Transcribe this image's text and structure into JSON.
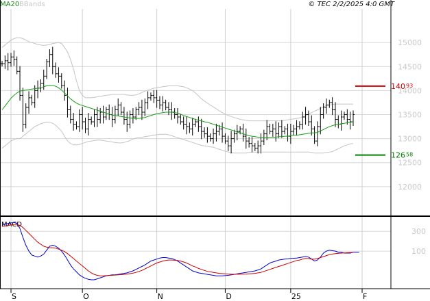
{
  "header": {
    "legend_ma": "MA20",
    "legend_bb": "BBands",
    "timestamp": "© TEC 2/2/2025 4:0 GMT"
  },
  "chart_data": [
    {
      "type": "candlestick",
      "panel": "price",
      "ylim": [
        11400,
        15700
      ],
      "y_ticks": [
        {
          "value": 15000,
          "label": "15000"
        },
        {
          "value": 14500,
          "label": "14500"
        },
        {
          "value": 14000,
          "label": "14000"
        },
        {
          "value": 13500,
          "label": "13500"
        },
        {
          "value": 13000,
          "label": "13000"
        },
        {
          "value": 12500,
          "label": "12500"
        },
        {
          "value": 12000,
          "label": "12000"
        }
      ],
      "x_ticks": [
        {
          "index": 3,
          "label": "S"
        },
        {
          "index": 27,
          "label": "O"
        },
        {
          "index": 52,
          "label": "N"
        },
        {
          "index": 75,
          "label": "D"
        },
        {
          "index": 97,
          "label": "25"
        },
        {
          "index": 121,
          "label": "F"
        }
      ],
      "levels": [
        {
          "name": "resistance",
          "value": 14093,
          "int": "140",
          "dec": "93",
          "color": "#cc0000"
        },
        {
          "name": "support",
          "value": 12658,
          "int": "126",
          "dec": "58",
          "color": "#008000"
        }
      ],
      "close": [
        14560,
        14620,
        14580,
        14700,
        14650,
        14400,
        13900,
        13300,
        13650,
        13850,
        13750,
        14000,
        14050,
        14150,
        14300,
        14600,
        14750,
        14500,
        14350,
        14300,
        14100,
        13900,
        13600,
        13400,
        13300,
        13250,
        13500,
        13350,
        13200,
        13400,
        13350,
        13500,
        13400,
        13550,
        13450,
        13600,
        13500,
        13400,
        13600,
        13700,
        13550,
        13400,
        13300,
        13500,
        13450,
        13600,
        13650,
        13550,
        13750,
        13850,
        13900,
        13850,
        13800,
        13700,
        13750,
        13650,
        13600,
        13550,
        13500,
        13450,
        13350,
        13300,
        13250,
        13200,
        13300,
        13350,
        13250,
        13150,
        13100,
        13050,
        13000,
        13100,
        13150,
        13200,
        13050,
        12950,
        12850,
        13000,
        13100,
        13150,
        13200,
        13050,
        12950,
        12900,
        12850,
        12800,
        12850,
        12950,
        13100,
        13250,
        13150,
        13200,
        13100,
        13250,
        13150,
        13200,
        13050,
        13150,
        13200,
        13250,
        13300,
        13450,
        13500,
        13350,
        13200,
        12950,
        13250,
        13500,
        13650,
        13700,
        13750,
        13600,
        13400,
        13300,
        13450,
        13500,
        13400,
        13350,
        13500
      ],
      "ma20": [
        13600,
        13680,
        13760,
        13840,
        13900,
        13950,
        13990,
        14000,
        14010,
        14020,
        14030,
        14040,
        14050,
        14060,
        14080,
        14100,
        14110,
        14110,
        14090,
        14060,
        14010,
        13950,
        13890,
        13830,
        13780,
        13740,
        13710,
        13690,
        13670,
        13650,
        13630,
        13610,
        13590,
        13570,
        13550,
        13530,
        13510,
        13490,
        13480,
        13470,
        13460,
        13450,
        13440,
        13430,
        13420,
        13420,
        13420,
        13430,
        13440,
        13460,
        13480,
        13500,
        13520,
        13530,
        13540,
        13550,
        13550,
        13550,
        13540,
        13530,
        13510,
        13480,
        13460,
        13440,
        13420,
        13400,
        13380,
        13370,
        13350,
        13340,
        13320,
        13300,
        13280,
        13260,
        13240,
        13220,
        13200,
        13180,
        13160,
        13140,
        13120,
        13100,
        13080,
        13060,
        13050,
        13040,
        13030,
        13030,
        13030,
        13030,
        13030,
        13030,
        13030,
        13040,
        13040,
        13050,
        13050,
        13060,
        13070,
        13070,
        13080,
        13090,
        13100,
        13110,
        13120,
        13120,
        13130,
        13160,
        13190,
        13220,
        13250,
        13270,
        13290,
        13300,
        13310,
        13320,
        13330,
        13340,
        13350
      ],
      "bb_upper": [
        14900,
        14950,
        15000,
        15050,
        15080,
        15100,
        15100,
        15080,
        15050,
        15020,
        15000,
        14980,
        14960,
        14950,
        14940,
        14950,
        14960,
        14980,
        14990,
        15000,
        14980,
        14900,
        14800,
        14650,
        14450,
        14200,
        14000,
        13900,
        13850,
        13850,
        13850,
        13860,
        13870,
        13880,
        13890,
        13900,
        13910,
        13920,
        13920,
        13920,
        13920,
        13920,
        13910,
        13900,
        13900,
        13910,
        13930,
        13960,
        13990,
        14010,
        14030,
        14050,
        14060,
        14070,
        14080,
        14090,
        14100,
        14100,
        14100,
        14100,
        14090,
        14080,
        14060,
        14030,
        14000,
        13950,
        13890,
        13830,
        13780,
        13740,
        13700,
        13660,
        13620,
        13580,
        13540,
        13510,
        13480,
        13460,
        13440,
        13420,
        13400,
        13390,
        13380,
        13370,
        13370,
        13370,
        13370,
        13370,
        13370,
        13370,
        13370,
        13370,
        13370,
        13370,
        13370,
        13380,
        13390,
        13400,
        13410,
        13420,
        13430,
        13450,
        13480,
        13510,
        13540,
        13570,
        13600,
        13630,
        13660,
        13690,
        13700,
        13710,
        13720,
        13720,
        13720,
        13720,
        13720,
        13720,
        13720
      ],
      "bb_lower": [
        12800,
        12850,
        12900,
        12950,
        12980,
        13000,
        13000,
        13050,
        13100,
        13150,
        13200,
        13250,
        13280,
        13310,
        13330,
        13340,
        13340,
        13320,
        13280,
        13220,
        13150,
        13050,
        12950,
        12900,
        12870,
        12870,
        12880,
        12900,
        12920,
        12940,
        12950,
        12960,
        12970,
        12970,
        12960,
        12950,
        12940,
        12930,
        12920,
        12910,
        12910,
        12920,
        12940,
        12960,
        12990,
        13010,
        13020,
        13030,
        13040,
        13050,
        13060,
        13070,
        13080,
        13090,
        13090,
        13090,
        13080,
        13060,
        13040,
        13020,
        13000,
        12980,
        12960,
        12940,
        12920,
        12900,
        12880,
        12860,
        12850,
        12840,
        12830,
        12820,
        12800,
        12780,
        12760,
        12740,
        12720,
        12710,
        12700,
        12700,
        12700,
        12700,
        12700,
        12710,
        12720,
        12720,
        12720,
        12720,
        12720,
        12720,
        12720,
        12720,
        12720,
        12720,
        12720,
        12720,
        12720,
        12720,
        12720,
        12720,
        12720,
        12720,
        12720,
        12720,
        12710,
        12700,
        12700,
        12700,
        12700,
        12710,
        12720,
        12730,
        12760,
        12790,
        12820,
        12850,
        12870,
        12890,
        12900
      ]
    },
    {
      "type": "line",
      "panel": "macd",
      "title": "MACD",
      "ylim": [
        -280,
        440
      ],
      "y_ticks": [
        {
          "value": 300,
          "label": "300"
        },
        {
          "value": 100,
          "label": "100"
        }
      ],
      "series": [
        {
          "name": "macd",
          "color": "#0000cc",
          "values": [
            370,
            375,
            380,
            385,
            390,
            380,
            330,
            240,
            160,
            100,
            60,
            50,
            40,
            50,
            70,
            110,
            150,
            160,
            150,
            130,
            100,
            60,
            10,
            -40,
            -80,
            -110,
            -140,
            -160,
            -175,
            -185,
            -190,
            -190,
            -180,
            -170,
            -160,
            -150,
            -145,
            -140,
            -140,
            -135,
            -130,
            -125,
            -120,
            -110,
            -100,
            -85,
            -70,
            -55,
            -40,
            -20,
            0,
            10,
            20,
            30,
            35,
            35,
            30,
            25,
            15,
            0,
            -20,
            -40,
            -60,
            -80,
            -100,
            -110,
            -120,
            -125,
            -130,
            -135,
            -140,
            -145,
            -150,
            -150,
            -150,
            -148,
            -145,
            -140,
            -135,
            -130,
            -125,
            -120,
            -115,
            -110,
            -105,
            -100,
            -90,
            -80,
            -60,
            -40,
            -20,
            -10,
            0,
            10,
            15,
            20,
            22,
            25,
            28,
            30,
            35,
            40,
            45,
            40,
            20,
            0,
            10,
            40,
            80,
            100,
            110,
            105,
            100,
            90,
            90,
            80,
            80,
            80,
            90,
            90,
            90
          ]
        },
        {
          "name": "signal",
          "color": "#cc0000",
          "values": [
            350,
            355,
            360,
            365,
            370,
            370,
            360,
            340,
            310,
            280,
            250,
            220,
            190,
            170,
            150,
            140,
            135,
            135,
            130,
            120,
            110,
            95,
            75,
            50,
            25,
            0,
            -25,
            -50,
            -75,
            -100,
            -120,
            -135,
            -145,
            -150,
            -150,
            -148,
            -146,
            -144,
            -142,
            -140,
            -138,
            -135,
            -132,
            -128,
            -122,
            -115,
            -105,
            -95,
            -80,
            -65,
            -50,
            -35,
            -20,
            -10,
            0,
            5,
            10,
            10,
            8,
            5,
            0,
            -10,
            -20,
            -35,
            -50,
            -60,
            -75,
            -85,
            -95,
            -105,
            -110,
            -115,
            -120,
            -125,
            -128,
            -130,
            -132,
            -133,
            -134,
            -134,
            -134,
            -133,
            -132,
            -130,
            -128,
            -125,
            -120,
            -115,
            -105,
            -95,
            -85,
            -75,
            -65,
            -55,
            -45,
            -35,
            -25,
            -15,
            -5,
            5,
            10,
            20,
            25,
            25,
            20,
            20,
            25,
            35,
            45,
            55,
            65,
            70,
            75,
            78,
            80,
            82,
            84,
            86,
            88
          ]
        }
      ]
    }
  ]
}
